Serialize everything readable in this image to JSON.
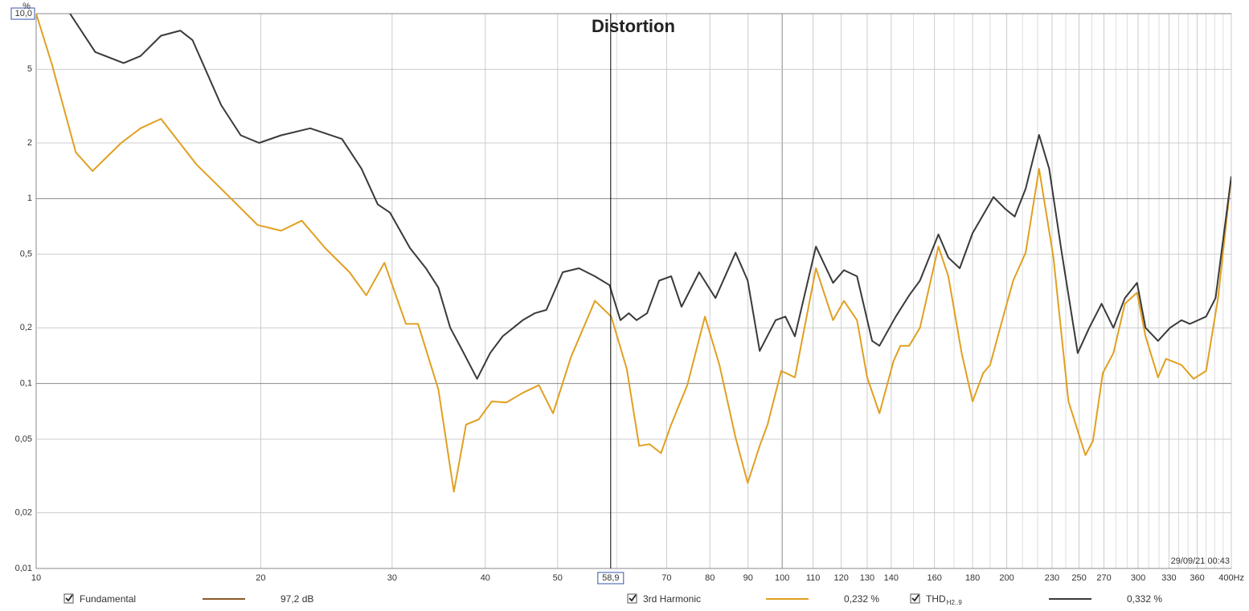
{
  "chart_data": {
    "type": "line",
    "title": "Distortion",
    "y_unit": "%",
    "log_x": true,
    "log_y": true,
    "grid": true,
    "xlim": [
      10,
      400
    ],
    "ylim": [
      0.01,
      10
    ],
    "xticks": [
      10,
      20,
      30,
      40,
      50,
      70,
      80,
      90,
      100,
      110,
      120,
      130,
      140,
      160,
      180,
      200,
      230,
      250,
      270,
      300,
      330,
      360,
      {
        "value": 400,
        "label": "400Hz"
      }
    ],
    "xminor": [
      60,
      150,
      170,
      190,
      210,
      220,
      240,
      260,
      280,
      290,
      310,
      320,
      340,
      350,
      370,
      380,
      390
    ],
    "yticks": [
      {
        "value": 10,
        "label": "10,0"
      },
      5,
      2,
      1,
      {
        "value": 0.5,
        "label": "0,5"
      },
      {
        "value": 0.2,
        "label": "0,2"
      },
      {
        "value": 0.1,
        "label": "0,1"
      },
      {
        "value": 0.05,
        "label": "0,05"
      },
      {
        "value": 0.02,
        "label": "0,02"
      },
      {
        "value": 0.01,
        "label": "0,01"
      }
    ],
    "cursor": {
      "value": 58.9,
      "label": "58,9"
    },
    "timestamp": "29/09/21 00:43",
    "fundamental": {
      "name": "Fundamental",
      "color": "#8b5a2b",
      "readout": "97,2 dB"
    },
    "series": [
      {
        "name": "3rd Harmonic",
        "color": "#e0a020",
        "readout": "0,232 %",
        "x": [
          10,
          10.5,
          11.3,
          11.9,
          13.0,
          13.8,
          14.7,
          16.4,
          17.9,
          19.8,
          21.3,
          22.7,
          24.4,
          26.3,
          27.7,
          29.3,
          31.3,
          32.5,
          34.6,
          36.3,
          37.7,
          39.2,
          40.8,
          42.7,
          44.9,
          47.2,
          49.3,
          52.1,
          56.1,
          59.0,
          61.9,
          64.3,
          66.4,
          68.8,
          71.0,
          74.6,
          78.8,
          82.4,
          86.6,
          89.9,
          93.3,
          95.6,
          99.7,
          104,
          111,
          117,
          121,
          126,
          130,
          135,
          141,
          144,
          148,
          153,
          162,
          167,
          174,
          180,
          186,
          190,
          196,
          204,
          212,
          221,
          231,
          242,
          255,
          261,
          269,
          278,
          288,
          299,
          307,
          319,
          327,
          343,
          356,
          370,
          384,
          400
        ],
        "values": [
          10,
          5.3,
          1.78,
          1.41,
          2.0,
          2.4,
          2.7,
          1.53,
          1.08,
          0.72,
          0.67,
          0.76,
          0.54,
          0.4,
          0.3,
          0.45,
          0.21,
          0.21,
          0.093,
          0.026,
          0.06,
          0.064,
          0.08,
          0.079,
          0.089,
          0.098,
          0.069,
          0.139,
          0.28,
          0.23,
          0.12,
          0.046,
          0.047,
          0.042,
          0.06,
          0.098,
          0.23,
          0.126,
          0.051,
          0.029,
          0.046,
          0.06,
          0.117,
          0.108,
          0.42,
          0.22,
          0.28,
          0.22,
          0.108,
          0.069,
          0.132,
          0.16,
          0.16,
          0.2,
          0.55,
          0.38,
          0.146,
          0.08,
          0.114,
          0.126,
          0.2,
          0.36,
          0.51,
          1.45,
          0.48,
          0.08,
          0.041,
          0.049,
          0.114,
          0.146,
          0.27,
          0.31,
          0.18,
          0.108,
          0.136,
          0.126,
          0.106,
          0.117,
          0.29,
          1.32
        ]
      },
      {
        "name": "THD",
        "name_sub": "H2..9",
        "color": "#3a3a3a",
        "readout": "0,332 %",
        "x": [
          11.1,
          12.0,
          13.1,
          13.8,
          14.7,
          15.6,
          16.2,
          17.7,
          18.8,
          19.9,
          21.3,
          23.3,
          25.7,
          27.3,
          28.7,
          29.8,
          31.7,
          33.3,
          34.6,
          35.9,
          37.3,
          39.0,
          40.6,
          42.2,
          44.9,
          46.6,
          48.3,
          50.8,
          53.4,
          56.1,
          58.7,
          60.7,
          62.3,
          63.8,
          65.9,
          68.4,
          71.0,
          73.3,
          77.4,
          81.4,
          86.6,
          89.9,
          93.3,
          98.0,
          101,
          104,
          111,
          117,
          121,
          126,
          132,
          135,
          142,
          148,
          153,
          162,
          167,
          173,
          180,
          192,
          199,
          205,
          212,
          221,
          228,
          237,
          249,
          258,
          268,
          278,
          288,
          299,
          307,
          319,
          331,
          343,
          352,
          370,
          381,
          400
        ],
        "values": [
          10,
          6.2,
          5.4,
          5.9,
          7.6,
          8.1,
          7.2,
          3.2,
          2.2,
          2.0,
          2.2,
          2.4,
          2.1,
          1.45,
          0.93,
          0.84,
          0.54,
          0.42,
          0.33,
          0.2,
          0.15,
          0.106,
          0.146,
          0.18,
          0.22,
          0.24,
          0.25,
          0.4,
          0.42,
          0.38,
          0.34,
          0.22,
          0.24,
          0.22,
          0.24,
          0.36,
          0.38,
          0.26,
          0.4,
          0.29,
          0.51,
          0.36,
          0.15,
          0.22,
          0.23,
          0.18,
          0.55,
          0.35,
          0.41,
          0.38,
          0.17,
          0.16,
          0.23,
          0.3,
          0.36,
          0.64,
          0.48,
          0.42,
          0.65,
          1.02,
          0.88,
          0.8,
          1.13,
          2.21,
          1.45,
          0.51,
          0.146,
          0.2,
          0.27,
          0.2,
          0.29,
          0.35,
          0.2,
          0.17,
          0.2,
          0.22,
          0.21,
          0.23,
          0.29,
          1.32
        ]
      }
    ]
  }
}
